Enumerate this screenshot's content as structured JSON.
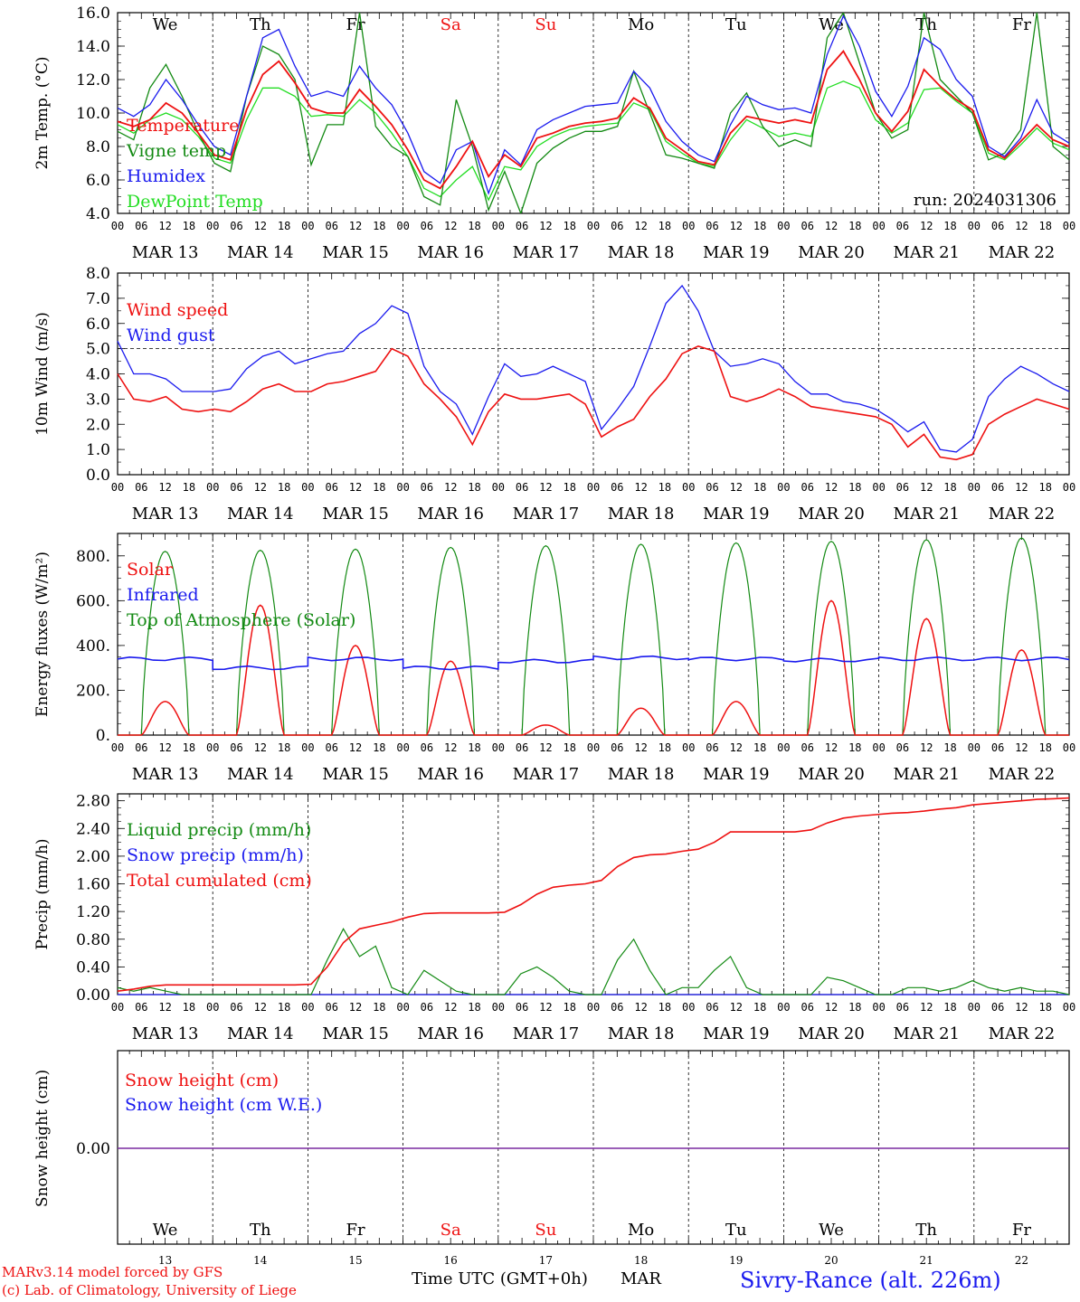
{
  "colors": {
    "red": "#ee1111",
    "green": "#138a13",
    "blue": "#1a1aee",
    "light_green": "#22dd22",
    "purple": "#7a2aa0",
    "black": "#000000"
  },
  "days": [
    "We",
    "Th",
    "Fr",
    "Sa",
    "Su",
    "Mo",
    "Tu",
    "We",
    "Th",
    "Fr"
  ],
  "weekend_flags": [
    false,
    false,
    false,
    true,
    true,
    false,
    false,
    false,
    false,
    false
  ],
  "date_labels": [
    "MAR 13",
    "MAR 14",
    "MAR 15",
    "MAR 16",
    "MAR 17",
    "MAR 18",
    "MAR 19",
    "MAR 20",
    "MAR 21",
    "MAR 22"
  ],
  "day_numbers": [
    "13",
    "14",
    "15",
    "16",
    "17",
    "18",
    "19",
    "20",
    "21",
    "22"
  ],
  "hour_ticks": [
    "00",
    "06",
    "12",
    "18"
  ],
  "footer": {
    "model": "MARv3.14 model forced by GFS",
    "credit": "(c) Lab. of Climatology, University of Liege",
    "axis_title": "Time UTC (GMT+0h)",
    "month": "MAR",
    "station": "Sivry-Rance (alt. 226m)"
  },
  "chart_data": [
    {
      "type": "line",
      "ylabel": "2m Temp. (°C)",
      "ylim": [
        4.0,
        16.0
      ],
      "yticks": [
        "4.0",
        "6.0",
        "8.0",
        "10.0",
        "12.0",
        "14.0",
        "16.0"
      ],
      "annotation": "run: 2024031306",
      "series": [
        {
          "name": "Temperature",
          "color": "red",
          "values": [
            9.5,
            9.2,
            9.6,
            10.6,
            10.0,
            8.8,
            7.5,
            7.2,
            10.2,
            12.3,
            13.1,
            11.8,
            10.3,
            10.0,
            10.0,
            11.4,
            10.4,
            9.3,
            7.8,
            6.0,
            5.5,
            6.8,
            8.3,
            6.2,
            7.5,
            6.8,
            8.5,
            8.8,
            9.2,
            9.4,
            9.5,
            9.7,
            10.9,
            10.3,
            8.5,
            7.8,
            7.1,
            6.9,
            8.8,
            9.8,
            9.6,
            9.4,
            9.6,
            9.4,
            12.6,
            13.7,
            12.0,
            10.0,
            8.9,
            10.1,
            12.6,
            11.6,
            10.8,
            10.2,
            7.8,
            7.3,
            8.3,
            9.3,
            8.4,
            8.0
          ]
        },
        {
          "name": "Vigne temp",
          "color": "green",
          "values": [
            8.9,
            8.4,
            11.5,
            12.9,
            11.0,
            8.8,
            7.0,
            6.5,
            11.0,
            14.0,
            13.5,
            12.0,
            6.9,
            9.3,
            9.3,
            16.0,
            9.2,
            8.0,
            7.4,
            5.0,
            4.5,
            10.8,
            8.0,
            4.2,
            6.5,
            4.0,
            7.0,
            7.9,
            8.5,
            8.9,
            8.9,
            9.2,
            12.5,
            10.0,
            7.5,
            7.3,
            7.0,
            6.7,
            10.0,
            11.2,
            9.2,
            8.0,
            8.4,
            8.0,
            14.5,
            16.0,
            13.0,
            10.0,
            8.5,
            9.0,
            16.0,
            12.0,
            11.0,
            10.0,
            7.2,
            7.6,
            9.0,
            16.0,
            8.0,
            7.2
          ]
        },
        {
          "name": "Humidex",
          "color": "blue",
          "values": [
            10.3,
            9.8,
            10.5,
            12.0,
            10.8,
            9.3,
            8.0,
            7.5,
            11.0,
            14.5,
            15.0,
            12.8,
            11.0,
            11.3,
            11.0,
            12.8,
            11.5,
            10.5,
            8.8,
            6.5,
            5.8,
            7.8,
            8.3,
            5.2,
            7.8,
            6.9,
            9.0,
            9.6,
            10.0,
            10.4,
            10.5,
            10.6,
            12.5,
            11.5,
            9.5,
            8.3,
            7.5,
            7.1,
            9.3,
            11.0,
            10.5,
            10.2,
            10.3,
            10.0,
            13.5,
            15.8,
            14.0,
            11.3,
            9.8,
            11.6,
            14.5,
            13.8,
            12.0,
            11.0,
            8.0,
            7.4,
            8.5,
            10.8,
            8.8,
            8.2
          ]
        },
        {
          "name": "DewPoint Temp",
          "color": "light_green",
          "values": [
            9.3,
            8.8,
            9.6,
            10.0,
            9.6,
            8.6,
            7.3,
            7.0,
            9.6,
            11.5,
            11.5,
            11.0,
            9.8,
            9.9,
            9.8,
            10.8,
            10.0,
            8.8,
            7.4,
            5.5,
            5.0,
            6.0,
            6.8,
            4.8,
            6.8,
            6.6,
            8.0,
            8.6,
            9.0,
            9.2,
            9.3,
            9.4,
            10.6,
            10.2,
            8.3,
            7.6,
            7.0,
            6.8,
            8.4,
            9.6,
            9.1,
            8.6,
            8.8,
            8.6,
            11.5,
            11.9,
            11.5,
            9.6,
            8.8,
            9.4,
            11.4,
            11.5,
            10.7,
            10.0,
            7.6,
            7.2,
            8.1,
            9.1,
            8.2,
            7.8
          ]
        }
      ]
    },
    {
      "type": "line",
      "ylabel": "10m Wind (m/s)",
      "ylim": [
        0.0,
        8.0
      ],
      "yticks": [
        "0.0",
        "1.0",
        "2.0",
        "3.0",
        "4.0",
        "5.0",
        "6.0",
        "7.0",
        "8.0"
      ],
      "reference_line": 5.0,
      "series": [
        {
          "name": "Wind speed",
          "color": "red",
          "values": [
            4.0,
            3.0,
            2.9,
            3.1,
            2.6,
            2.5,
            2.6,
            2.5,
            2.9,
            3.4,
            3.6,
            3.3,
            3.3,
            3.6,
            3.7,
            3.9,
            4.1,
            5.0,
            4.7,
            3.6,
            3.0,
            2.3,
            1.2,
            2.5,
            3.2,
            3.0,
            3.0,
            3.1,
            3.2,
            2.8,
            1.5,
            1.9,
            2.2,
            3.1,
            3.8,
            4.8,
            5.1,
            4.9,
            3.1,
            2.9,
            3.1,
            3.4,
            3.1,
            2.7,
            2.6,
            2.5,
            2.4,
            2.3,
            2.0,
            1.1,
            1.6,
            0.7,
            0.6,
            0.8,
            2.0,
            2.4,
            2.7,
            3.0,
            2.8,
            2.6
          ]
        },
        {
          "name": "Wind gust",
          "color": "blue",
          "values": [
            5.3,
            4.0,
            4.0,
            3.8,
            3.3,
            3.3,
            3.3,
            3.4,
            4.2,
            4.7,
            4.9,
            4.4,
            4.6,
            4.8,
            4.9,
            5.6,
            6.0,
            6.7,
            6.4,
            4.3,
            3.3,
            2.8,
            1.6,
            3.1,
            4.4,
            3.9,
            4.0,
            4.3,
            4.0,
            3.7,
            1.8,
            2.6,
            3.5,
            5.1,
            6.8,
            7.5,
            6.5,
            4.9,
            4.3,
            4.4,
            4.6,
            4.4,
            3.7,
            3.2,
            3.2,
            2.9,
            2.8,
            2.6,
            2.2,
            1.7,
            2.1,
            1.0,
            0.9,
            1.4,
            3.1,
            3.8,
            4.3,
            4.0,
            3.6,
            3.3
          ]
        }
      ]
    },
    {
      "type": "line",
      "ylabel": "Energy fluxes (W/m²)",
      "ylim": [
        0,
        900
      ],
      "yticks": [
        "0.",
        "200.",
        "400.",
        "600.",
        "800."
      ],
      "series": [
        {
          "name": "Solar",
          "color": "red",
          "peaks": [
            150,
            580,
            400,
            330,
            45,
            120,
            150,
            600,
            520,
            380
          ]
        },
        {
          "name": "Infrared",
          "color": "blue",
          "level": [
            340,
            300,
            340,
            300,
            330,
            345,
            340,
            335,
            340,
            340
          ]
        },
        {
          "name": "Top of Atmosphere (Solar)",
          "color": "green",
          "peaks": [
            820,
            825,
            830,
            838,
            845,
            852,
            858,
            865,
            872,
            880
          ]
        }
      ]
    },
    {
      "type": "line",
      "ylabel": "Precip (mm/h)",
      "ylim": [
        0.0,
        2.9
      ],
      "yticks": [
        "0.00",
        "0.40",
        "0.80",
        "1.20",
        "1.60",
        "2.00",
        "2.40",
        "2.80"
      ],
      "series": [
        {
          "name": "Liquid precip (mm/h)",
          "color": "green",
          "values": [
            0.1,
            0.05,
            0.1,
            0.05,
            0,
            0,
            0,
            0,
            0,
            0,
            0,
            0,
            0,
            0.5,
            0.95,
            0.55,
            0.7,
            0.1,
            0.0,
            0.35,
            0.2,
            0.05,
            0,
            0,
            0,
            0.3,
            0.4,
            0.25,
            0.05,
            0,
            0,
            0.5,
            0.8,
            0.35,
            0,
            0.1,
            0.1,
            0.35,
            0.55,
            0.1,
            0,
            0,
            0,
            0,
            0.25,
            0.2,
            0.1,
            0,
            0,
            0.1,
            0.1,
            0.05,
            0.1,
            0.2,
            0.1,
            0.05,
            0.1,
            0.05,
            0.05,
            0
          ]
        },
        {
          "name": "Snow precip (mm/h)",
          "color": "blue",
          "values": [
            0,
            0,
            0,
            0,
            0,
            0,
            0,
            0,
            0,
            0,
            0,
            0,
            0,
            0,
            0,
            0,
            0,
            0,
            0,
            0,
            0,
            0,
            0,
            0,
            0,
            0,
            0,
            0,
            0,
            0,
            0,
            0,
            0,
            0,
            0,
            0,
            0,
            0,
            0,
            0,
            0,
            0,
            0,
            0,
            0,
            0,
            0,
            0,
            0,
            0,
            0,
            0,
            0,
            0,
            0,
            0,
            0,
            0,
            0,
            0
          ]
        },
        {
          "name": "Total cumulated (cm)",
          "color": "red",
          "values": [
            0.05,
            0.08,
            0.12,
            0.14,
            0.14,
            0.14,
            0.14,
            0.14,
            0.14,
            0.14,
            0.14,
            0.14,
            0.15,
            0.4,
            0.75,
            0.95,
            1.0,
            1.05,
            1.12,
            1.17,
            1.18,
            1.18,
            1.18,
            1.18,
            1.19,
            1.3,
            1.45,
            1.55,
            1.58,
            1.6,
            1.65,
            1.85,
            1.98,
            2.02,
            2.03,
            2.07,
            2.1,
            2.2,
            2.35,
            2.35,
            2.35,
            2.35,
            2.35,
            2.38,
            2.48,
            2.55,
            2.58,
            2.6,
            2.62,
            2.63,
            2.65,
            2.68,
            2.7,
            2.74,
            2.76,
            2.78,
            2.8,
            2.82,
            2.83,
            2.84
          ]
        }
      ]
    },
    {
      "type": "line",
      "ylabel": "Snow height (cm)",
      "yticks": [
        "0.00"
      ],
      "series": [
        {
          "name": "Snow height (cm)",
          "color": "red",
          "values": [
            0,
            0
          ]
        },
        {
          "name": "Snow height (cm W.E.)",
          "color": "blue",
          "values": [
            0,
            0
          ]
        }
      ]
    }
  ]
}
